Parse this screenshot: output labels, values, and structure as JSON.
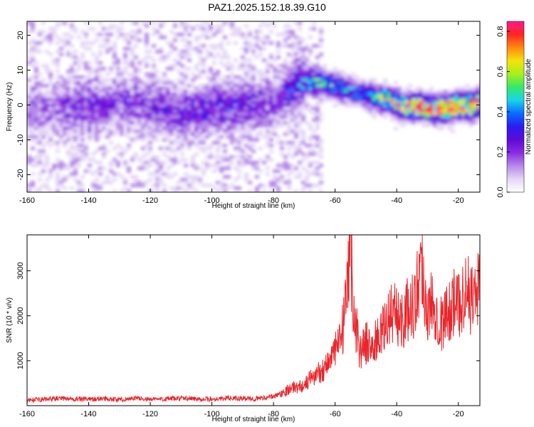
{
  "title": "PAZ1.2025.152.18.39.G10",
  "colors": {
    "snr_line": "#e8262b",
    "frame": "#000000",
    "colormap": [
      "#ffffff",
      "#e4d6f5",
      "#b58ae8",
      "#8a2be2",
      "#5c0bd6",
      "#2b1cf0",
      "#0a6cff",
      "#18d6e8",
      "#35e86a",
      "#a8f01a",
      "#f5e20c",
      "#ff8a10",
      "#ff2424",
      "#ff1a8c"
    ]
  },
  "chart_data": [
    {
      "type": "heatmap",
      "xlabel": "Height of straight line (km)",
      "ylabel": "Frequency (Hz)",
      "xlim": [
        -160,
        -13
      ],
      "ylim": [
        -25,
        24
      ],
      "x_ticks": [
        -160,
        -140,
        -120,
        -100,
        -80,
        -60,
        -40,
        -20
      ],
      "y_ticks": [
        20,
        10,
        0,
        -10,
        -20
      ],
      "colorbar": {
        "label": "Normalized spectral amplitude",
        "range": [
          0.0,
          0.85
        ],
        "ticks": [
          0.0,
          0.2,
          0.4,
          0.6,
          0.8
        ]
      },
      "ridge": [
        {
          "x": -155,
          "y": -1,
          "amp": 0.12
        },
        {
          "x": -140,
          "y": 0,
          "amp": 0.18
        },
        {
          "x": -125,
          "y": 1,
          "amp": 0.16
        },
        {
          "x": -110,
          "y": -2,
          "amp": 0.2
        },
        {
          "x": -95,
          "y": 0,
          "amp": 0.22
        },
        {
          "x": -80,
          "y": 1,
          "amp": 0.15
        },
        {
          "x": -72,
          "y": 7,
          "amp": 0.28
        },
        {
          "x": -65,
          "y": 7,
          "amp": 0.45
        },
        {
          "x": -58,
          "y": 5,
          "amp": 0.4
        },
        {
          "x": -50,
          "y": 3,
          "amp": 0.35
        },
        {
          "x": -44,
          "y": 2,
          "amp": 0.6
        },
        {
          "x": -38,
          "y": 0,
          "amp": 0.7
        },
        {
          "x": -33,
          "y": 0,
          "amp": 0.8
        },
        {
          "x": -27,
          "y": -1,
          "amp": 0.75
        },
        {
          "x": -22,
          "y": 0,
          "amp": 0.8
        },
        {
          "x": -17,
          "y": 0,
          "amp": 0.82
        },
        {
          "x": -13,
          "y": 1,
          "amp": 0.7
        }
      ]
    },
    {
      "type": "line",
      "xlabel": "Height of straight line (km)",
      "ylabel": "SNR (10 * v/v)",
      "xlim": [
        -160,
        -13
      ],
      "ylim": [
        0,
        3800
      ],
      "x_ticks": [
        -160,
        -140,
        -120,
        -100,
        -80,
        -60,
        -40,
        -20
      ],
      "y_ticks": [
        1000,
        2000,
        3000
      ],
      "series": [
        {
          "x": [
            -160,
            -155,
            -150,
            -145,
            -140,
            -135,
            -130,
            -125,
            -120,
            -115,
            -110,
            -105,
            -100,
            -95,
            -90,
            -85,
            -80,
            -78,
            -76,
            -74,
            -72,
            -70,
            -68,
            -66,
            -64,
            -62,
            -60,
            -58,
            -56,
            -55,
            -54,
            -53,
            -52,
            -50,
            -48,
            -46,
            -44,
            -42,
            -40,
            -38,
            -36,
            -34,
            -32,
            -30,
            -28,
            -26,
            -24,
            -22,
            -20,
            -18,
            -16,
            -14,
            -13
          ],
          "values": [
            120,
            140,
            160,
            150,
            140,
            160,
            130,
            170,
            140,
            150,
            160,
            150,
            140,
            170,
            150,
            160,
            200,
            260,
            330,
            400,
            420,
            450,
            600,
            700,
            800,
            1000,
            1200,
            1500,
            2400,
            3700,
            2100,
            1700,
            1200,
            1400,
            1300,
            1500,
            1700,
            2100,
            2000,
            1900,
            2200,
            2300,
            3300,
            2000,
            2400,
            1800,
            2000,
            2300,
            2200,
            2600,
            2400,
            2500,
            2900
          ]
        }
      ]
    }
  ]
}
